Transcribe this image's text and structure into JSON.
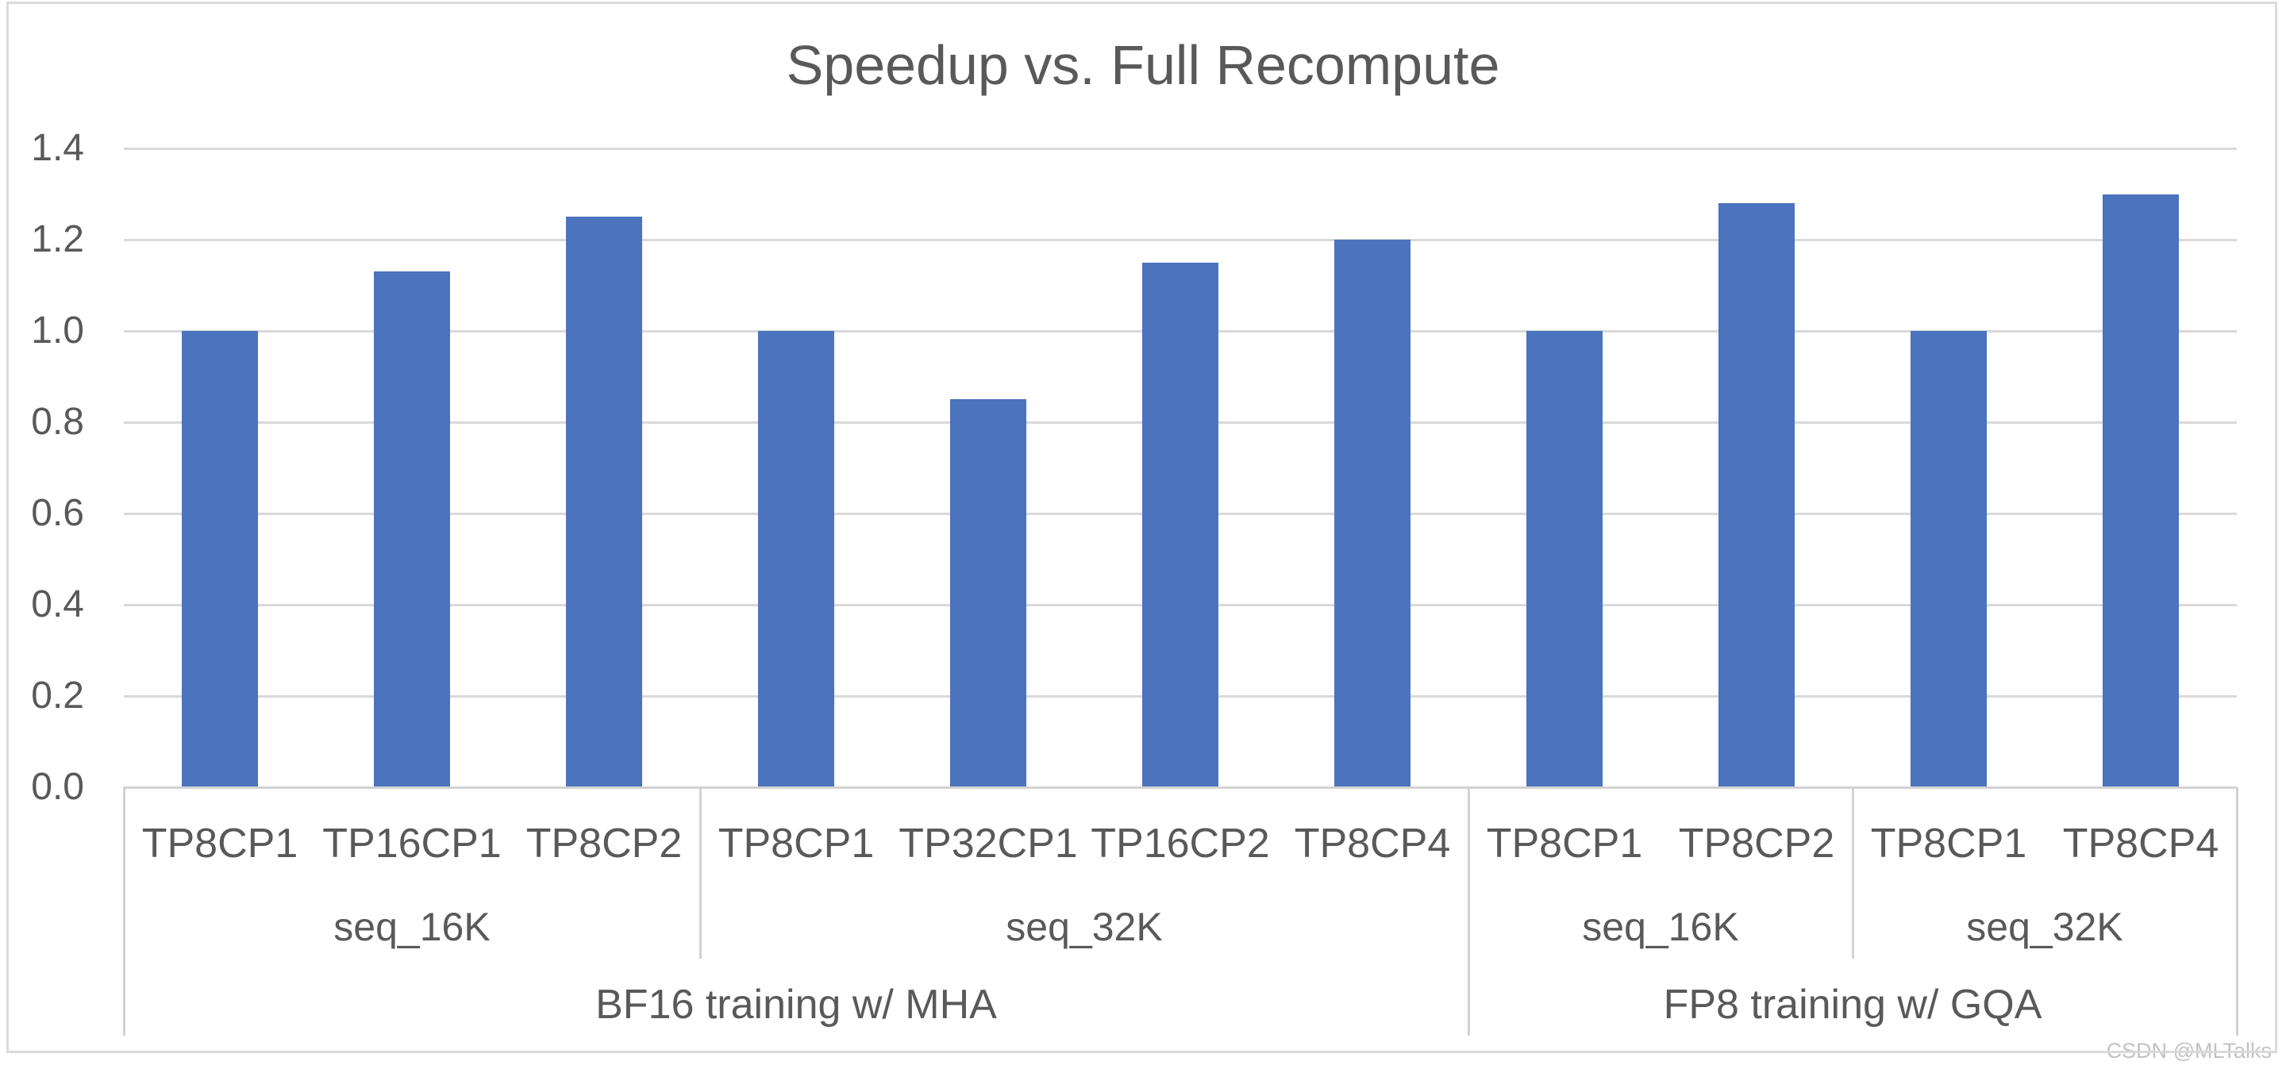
{
  "chart_data": {
    "type": "bar",
    "title": "Speedup vs. Full Recompute",
    "xlabel": "",
    "ylabel": "",
    "ylim": [
      0.0,
      1.4
    ],
    "ytick_step": 0.2,
    "yticks": [
      1.4,
      1.2,
      1.0,
      0.8,
      0.6,
      0.4,
      0.2,
      0.0
    ],
    "grid": "horizontal",
    "legend": "none",
    "bar_color": "#4b73be",
    "text_color": "#595959",
    "gridline_color": "#d9d9d9",
    "axis_line_color": "#d2d2d2",
    "groups": [
      {
        "group": "BF16 training w/ MHA",
        "subgroups": [
          {
            "label": "seq_16K",
            "bars": [
              {
                "label": "TP8CP1",
                "value": 1.0
              },
              {
                "label": "TP16CP1",
                "value": 1.13
              },
              {
                "label": "TP8CP2",
                "value": 1.25
              }
            ]
          },
          {
            "label": "seq_32K",
            "bars": [
              {
                "label": "TP8CP1",
                "value": 1.0
              },
              {
                "label": "TP32CP1",
                "value": 0.85
              },
              {
                "label": "TP16CP2",
                "value": 1.15
              },
              {
                "label": "TP8CP4",
                "value": 1.2
              }
            ]
          }
        ]
      },
      {
        "group": "FP8 training w/ GQA",
        "subgroups": [
          {
            "label": "seq_16K",
            "bars": [
              {
                "label": "TP8CP1",
                "value": 1.0
              },
              {
                "label": "TP8CP2",
                "value": 1.28
              }
            ]
          },
          {
            "label": "seq_32K",
            "bars": [
              {
                "label": "TP8CP1",
                "value": 1.0
              },
              {
                "label": "TP8CP4",
                "value": 1.3
              }
            ]
          }
        ]
      }
    ],
    "watermark": "CSDN @MLTalks"
  }
}
